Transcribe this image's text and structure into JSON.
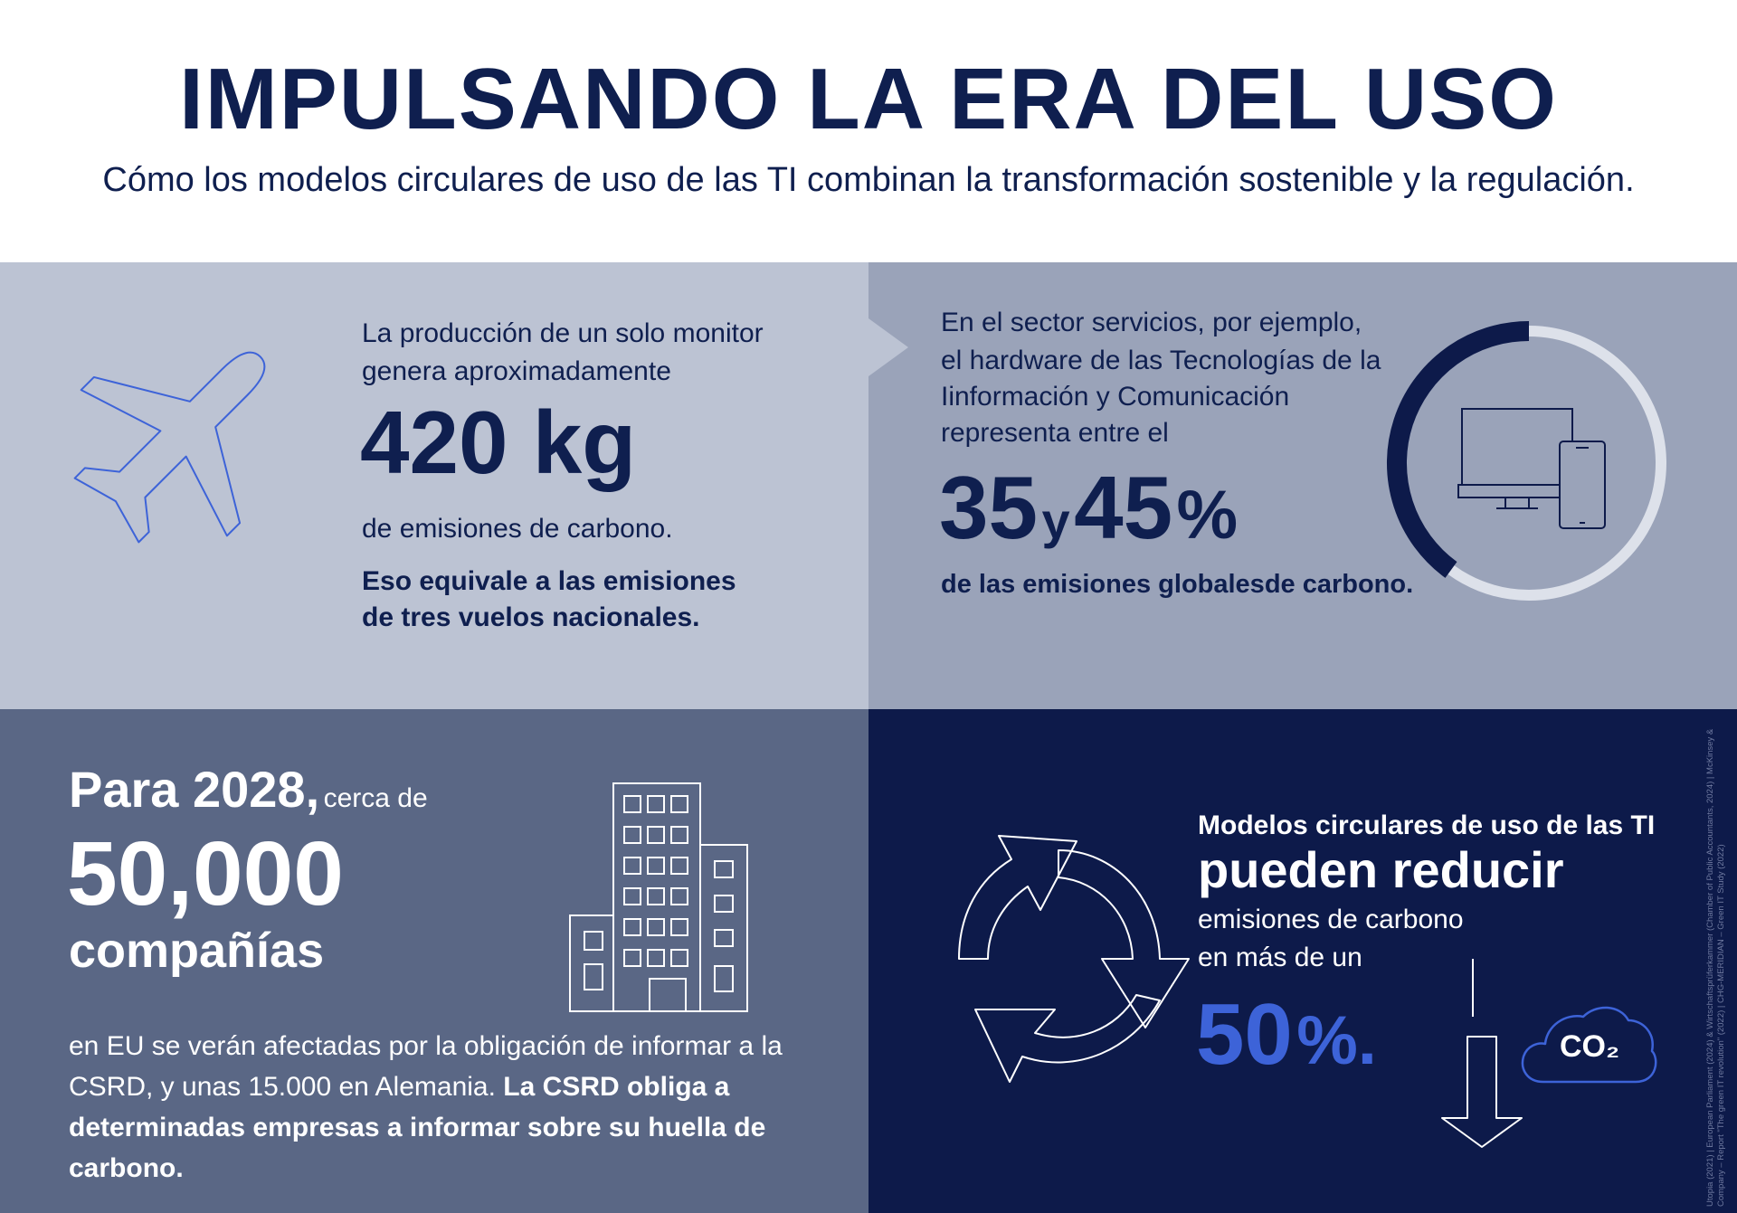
{
  "header": {
    "title": "IMPULSANDO LA ERA DEL USO",
    "subtitle": "Cómo los modelos circulares de uso de las TI combinan la transformación sostenible y la regulación."
  },
  "panel_monitor": {
    "intro_line1": "La producción de un solo monitor",
    "intro_line2": "genera aproximadamente",
    "value": "420 kg",
    "unit_text": "de emisiones de carbono.",
    "bold_line1": "Eso equivale a las emisiones",
    "bold_line2": "de tres vuelos nacionales.",
    "icon": "airplane-icon"
  },
  "panel_ict": {
    "line1": "En el sector servicios, por ejemplo,",
    "line2": "el hardware de las Tecnologías de la",
    "line3": "Iinformación y Comunicación",
    "line4": "representa entre el",
    "num1": "35",
    "conj": "y",
    "num2": "45",
    "percent": "%",
    "bold_text": "de las emisiones globalesde carbono.",
    "icon": "monitor-phone-icon"
  },
  "panel_csrd": {
    "year_bold": "Para 2028,",
    "year_rest": "cerca de",
    "value": "50,000",
    "companies": "compañías",
    "body_normal": "en EU se verán afectadas por la obligación de informar a la CSRD, y unas 15.000 en Alemania.",
    "body_bold": "La CSRD obliga a determinadas empresas a informar sobre su huella de carbono.",
    "icon": "building-icon"
  },
  "panel_circular": {
    "line1": "Modelos circulares de uso de las TI",
    "line2": "pueden reducir",
    "line3": "emisiones de carbono",
    "line4": "en más de un",
    "value": "50",
    "percent": "%.",
    "co2": "CO₂",
    "sources": "Utopia (2021) | European Parliament (2024) & Wirtschaftsprüferkammer (Chamber of Public Accountants, 2024) | McKinsey & Company – Report \"The green IT revolution\" (2022) | CHG-MERIDIAN – Green IT Study (2022)",
    "icons": [
      "recycle-arrows-icon",
      "down-arrow-icon",
      "cloud-icon"
    ]
  },
  "colors": {
    "navy": "#0f1f4f",
    "panel1": "#bcc3d3",
    "panel2": "#9aa3b9",
    "panel3": "#5a6785",
    "panel4": "#0d1a4a",
    "accent_blue": "#3d63d8"
  }
}
